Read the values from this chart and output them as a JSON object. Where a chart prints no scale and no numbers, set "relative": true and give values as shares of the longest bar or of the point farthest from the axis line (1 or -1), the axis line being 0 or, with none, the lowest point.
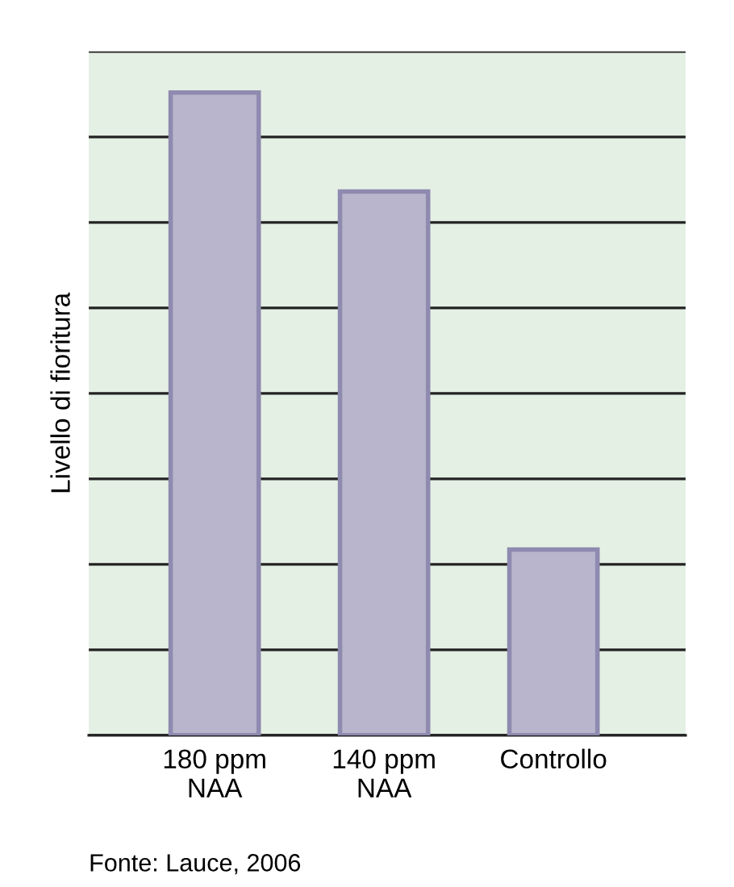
{
  "chart_data": {
    "type": "bar",
    "ylabel": "Livello di fioritura",
    "categories": [
      "180 ppm\nNAA",
      "140 ppm\nNAA",
      "Controllo"
    ],
    "values": [
      1,
      0.846,
      0.289
    ],
    "color": "#b8b5cc",
    "relative": true,
    "grid": "y",
    "tick_labels": "x",
    "annotations": [
      "Fonte: Lauce, 2006"
    ]
  }
}
